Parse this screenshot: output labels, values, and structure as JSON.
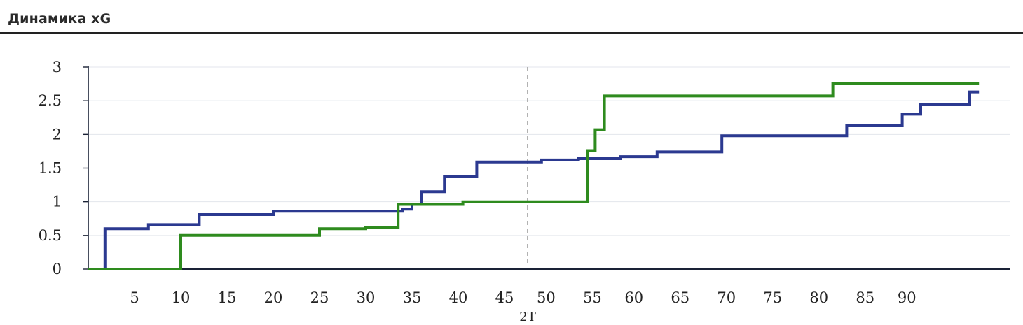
{
  "header": {
    "title": "Динамика xG"
  },
  "colors": {
    "team_a": "#2b3990",
    "team_b": "#2e8b1e",
    "grid": "#e3e6ec",
    "axis": "#1a2236",
    "halftime": "#999999",
    "tick_text": "#222222"
  },
  "chart_data": {
    "type": "line",
    "step": true,
    "title": "Динамика xG",
    "xlabel": "",
    "ylabel": "",
    "xlim": [
      0,
      95
    ],
    "ylim": [
      0,
      3
    ],
    "y_ticks": [
      "0",
      "0.5",
      "1",
      "1.5",
      "2",
      "2.5",
      "3"
    ],
    "y_tick_values": [
      0,
      0.5,
      1,
      1.5,
      2,
      2.5,
      3
    ],
    "x_ticks": [
      {
        "label": "5",
        "value": 5
      },
      {
        "label": "10",
        "value": 10
      },
      {
        "label": "15",
        "value": 15
      },
      {
        "label": "20",
        "value": 20
      },
      {
        "label": "25",
        "value": 25
      },
      {
        "label": "30",
        "value": 30
      },
      {
        "label": "35",
        "value": 35
      },
      {
        "label": "40",
        "value": 40
      },
      {
        "label": "45",
        "value": 45
      },
      {
        "label": "50",
        "value": 49.5
      },
      {
        "label": "55",
        "value": 54.5
      },
      {
        "label": "60",
        "value": 59
      },
      {
        "label": "65",
        "value": 64
      },
      {
        "label": "70",
        "value": 69
      },
      {
        "label": "75",
        "value": 74
      },
      {
        "label": "80",
        "value": 79
      },
      {
        "label": "85",
        "value": 84
      },
      {
        "label": "90",
        "value": 88.5
      }
    ],
    "halftime": {
      "x": 47.5,
      "label": "2T"
    },
    "grid": true,
    "legend": "none",
    "series": [
      {
        "color": "#2b3990",
        "points": [
          [
            0,
            0
          ],
          [
            1.8,
            0
          ],
          [
            1.8,
            0.6
          ],
          [
            6.5,
            0.6
          ],
          [
            6.5,
            0.66
          ],
          [
            12,
            0.66
          ],
          [
            12,
            0.81
          ],
          [
            20,
            0.81
          ],
          [
            20,
            0.86
          ],
          [
            34,
            0.86
          ],
          [
            34,
            0.89
          ],
          [
            35,
            0.89
          ],
          [
            35,
            0.96
          ],
          [
            36,
            0.96
          ],
          [
            36,
            1.15
          ],
          [
            38.5,
            1.15
          ],
          [
            38.5,
            1.37
          ],
          [
            42,
            1.37
          ],
          [
            42,
            1.59
          ],
          [
            49,
            1.59
          ],
          [
            49,
            1.62
          ],
          [
            53,
            1.62
          ],
          [
            53,
            1.64
          ],
          [
            57.5,
            1.64
          ],
          [
            57.5,
            1.67
          ],
          [
            61.5,
            1.67
          ],
          [
            61.5,
            1.74
          ],
          [
            68.5,
            1.74
          ],
          [
            68.5,
            1.98
          ],
          [
            82,
            1.98
          ],
          [
            82,
            2.13
          ],
          [
            88,
            2.13
          ],
          [
            88,
            2.3
          ],
          [
            90,
            2.3
          ],
          [
            90,
            2.45
          ],
          [
            95.3,
            2.45
          ],
          [
            95.3,
            2.63
          ],
          [
            96.3,
            2.63
          ]
        ]
      },
      {
        "color": "#2e8b1e",
        "points": [
          [
            0,
            0
          ],
          [
            10,
            0
          ],
          [
            10,
            0.5
          ],
          [
            25,
            0.5
          ],
          [
            25,
            0.6
          ],
          [
            30,
            0.6
          ],
          [
            30,
            0.62
          ],
          [
            33.5,
            0.62
          ],
          [
            33.5,
            0.96
          ],
          [
            40.5,
            0.96
          ],
          [
            40.5,
            1.0
          ],
          [
            54,
            1.0
          ],
          [
            54,
            1.76
          ],
          [
            54.8,
            1.76
          ],
          [
            54.8,
            2.07
          ],
          [
            55.8,
            2.07
          ],
          [
            55.8,
            2.57
          ],
          [
            80.5,
            2.57
          ],
          [
            80.5,
            2.76
          ],
          [
            96.3,
            2.76
          ]
        ]
      }
    ]
  }
}
